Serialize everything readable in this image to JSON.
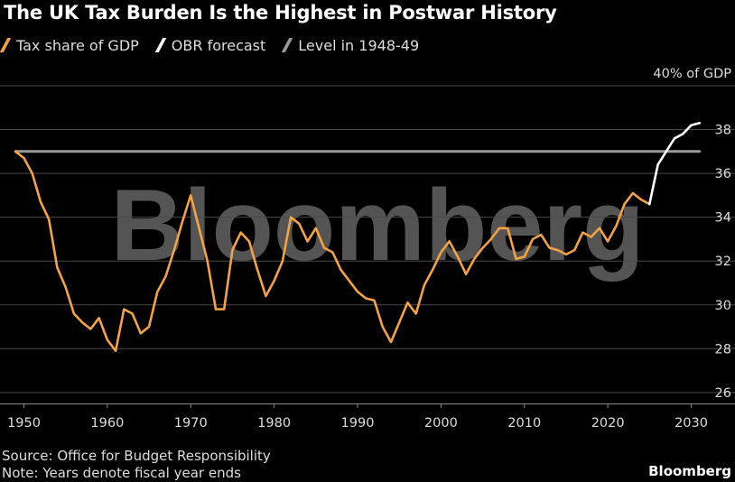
{
  "chart_data": {
    "type": "line",
    "title": "The UK Tax Burden Is the Highest in Postwar History",
    "watermark": "Bloomberg",
    "y_unit_label": "40% of GDP",
    "ylim": [
      25.5,
      40
    ],
    "xlim": [
      1948,
      2032
    ],
    "y_ticks": [
      26,
      28,
      30,
      32,
      34,
      36,
      38
    ],
    "y_tick_labels": [
      "26",
      "28",
      "30",
      "32",
      "34",
      "36",
      "38"
    ],
    "x_ticks": [
      1950,
      1960,
      1970,
      1980,
      1990,
      2000,
      2010,
      2020,
      2030
    ],
    "x_tick_labels": [
      "1950",
      "1960",
      "1970",
      "1980",
      "1990",
      "2000",
      "2010",
      "2020",
      "2030"
    ],
    "series": [
      {
        "name": "Tax share of GDP",
        "color": "#f5a342",
        "x": [
          1949,
          1950,
          1951,
          1952,
          1953,
          1954,
          1955,
          1956,
          1957,
          1958,
          1959,
          1960,
          1961,
          1962,
          1963,
          1964,
          1965,
          1966,
          1967,
          1968,
          1969,
          1970,
          1971,
          1972,
          1973,
          1974,
          1975,
          1976,
          1977,
          1978,
          1979,
          1980,
          1981,
          1982,
          1983,
          1984,
          1985,
          1986,
          1987,
          1988,
          1989,
          1990,
          1991,
          1992,
          1993,
          1994,
          1995,
          1996,
          1997,
          1998,
          1999,
          2000,
          2001,
          2002,
          2003,
          2004,
          2005,
          2006,
          2007,
          2008,
          2009,
          2010,
          2011,
          2012,
          2013,
          2014,
          2015,
          2016,
          2017,
          2018,
          2019,
          2020,
          2021,
          2022,
          2023,
          2024,
          2025
        ],
        "values": [
          37.0,
          36.7,
          36.0,
          34.7,
          33.9,
          31.7,
          30.8,
          29.6,
          29.2,
          28.9,
          29.4,
          28.4,
          27.9,
          29.8,
          29.6,
          28.7,
          29.0,
          30.6,
          31.3,
          32.5,
          33.8,
          35.0,
          33.5,
          32.0,
          29.8,
          29.8,
          32.5,
          33.3,
          32.9,
          31.6,
          30.4,
          31.1,
          32.0,
          34.0,
          33.7,
          32.9,
          33.5,
          32.6,
          32.4,
          31.6,
          31.1,
          30.6,
          30.3,
          30.2,
          29.0,
          28.3,
          29.2,
          30.1,
          29.6,
          30.9,
          31.6,
          32.4,
          32.9,
          32.2,
          31.4,
          32.1,
          32.6,
          33.0,
          33.5,
          33.5,
          32.1,
          32.2,
          33.0,
          33.2,
          32.6,
          32.5,
          32.3,
          32.5,
          33.3,
          33.1,
          33.5,
          32.9,
          33.6,
          34.6,
          35.1,
          34.8,
          34.6
        ]
      },
      {
        "name": "OBR forecast",
        "color": "#ffffff",
        "x": [
          2025,
          2026,
          2027,
          2028,
          2029,
          2030,
          2031
        ],
        "values": [
          34.6,
          36.4,
          37.0,
          37.6,
          37.8,
          38.2,
          38.3
        ]
      },
      {
        "name": "Level in 1948-49",
        "color": "#9a9a9a",
        "x": [
          1949,
          2031
        ],
        "values": [
          37.0,
          37.0
        ]
      }
    ]
  },
  "footer": {
    "source": "Source: Office for Budget Responsibility",
    "note": "Note: Years denote fiscal year ends",
    "brand": "Bloomberg"
  }
}
